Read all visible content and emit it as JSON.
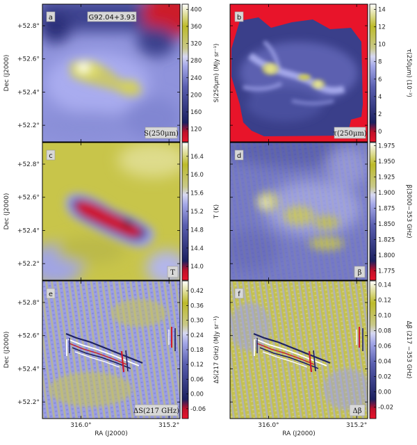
{
  "chart_data": {
    "type": "heatmap",
    "layout": "3x2 grid of map panels",
    "shared_axes": {
      "xlabel": "RA (J2000)",
      "ylabel": "Dec (J2000)",
      "x_ticks": [
        "316.0°",
        "315.2°"
      ],
      "y_ticks": [
        "+52.8°",
        "+52.6°",
        "+52.4°",
        "+52.2°"
      ],
      "x_tick_values": [
        316.0,
        315.2
      ],
      "y_tick_values": [
        52.8,
        52.6,
        52.4,
        52.2
      ],
      "x_range": [
        316.35,
        315.1
      ],
      "y_range": [
        52.1,
        52.93
      ]
    },
    "panels": [
      {
        "id": "a",
        "field_label": "G92.04+3.93",
        "map_label": "S(250μm)",
        "colorbar_label": "S(250μm) (MJy sr⁻¹)",
        "colorbar_ticks": [
          "400",
          "360",
          "320",
          "280",
          "240",
          "200",
          "160",
          "120"
        ],
        "colorbar_tick_values": [
          400,
          360,
          320,
          280,
          240,
          200,
          160,
          120
        ],
        "colorbar_range": [
          90,
          412
        ],
        "colormap": "diverging red-blue-white-yellow"
      },
      {
        "id": "b",
        "map_label": "τ(250μm)",
        "colorbar_label": "τ(250μm) (10⁻³)",
        "colorbar_ticks": [
          "14",
          "12",
          "10",
          "8",
          "6",
          "4",
          "2",
          "0"
        ],
        "colorbar_tick_values": [
          14,
          12,
          10,
          8,
          6,
          4,
          2,
          0
        ],
        "colorbar_range": [
          -1.2,
          14.6
        ],
        "colormap": "diverging red-blue-white-yellow"
      },
      {
        "id": "c",
        "map_label": "T",
        "colorbar_label": "T (K)",
        "colorbar_ticks": [
          "16.4",
          "16.0",
          "15.6",
          "15.2",
          "14.8",
          "14.4",
          "14.0"
        ],
        "colorbar_tick_values": [
          16.4,
          16.0,
          15.6,
          15.2,
          14.8,
          14.4,
          14.0
        ],
        "colorbar_range": [
          13.7,
          16.7
        ],
        "colormap": "diverging red-blue-white-yellow"
      },
      {
        "id": "d",
        "map_label": "β",
        "colorbar_label": "β(3000−353 GHz)",
        "colorbar_ticks": [
          "1.975",
          "1.950",
          "1.925",
          "1.900",
          "1.875",
          "1.850",
          "1.825",
          "1.800",
          "1.775"
        ],
        "colorbar_tick_values": [
          1.975,
          1.95,
          1.925,
          1.9,
          1.875,
          1.85,
          1.825,
          1.8,
          1.775
        ],
        "colorbar_range": [
          1.76,
          1.98
        ],
        "colormap": "diverging red-blue-white-yellow"
      },
      {
        "id": "e",
        "map_label": "ΔS(217 GHz)",
        "colorbar_label": "ΔS(217 GHz) (MJy sr⁻¹)",
        "colorbar_ticks": [
          "0.42",
          "0.36",
          "0.30",
          "0.24",
          "0.18",
          "0.12",
          "0.06",
          "0.00",
          "-0.06"
        ],
        "colorbar_tick_values": [
          0.42,
          0.36,
          0.3,
          0.24,
          0.18,
          0.12,
          0.06,
          0.0,
          -0.06
        ],
        "colorbar_range": [
          -0.1,
          0.46
        ],
        "colormap": "diverging red-blue-white-yellow"
      },
      {
        "id": "f",
        "map_label": "Δβ",
        "colorbar_label": "Δβ (217 −353 GHz)",
        "colorbar_ticks": [
          "0.14",
          "0.12",
          "0.10",
          "0.08",
          "0.06",
          "0.04",
          "0.02",
          "0.00",
          "-0.02"
        ],
        "colorbar_tick_values": [
          0.14,
          0.12,
          0.1,
          0.08,
          0.06,
          0.04,
          0.02,
          0.0,
          -0.02
        ],
        "colorbar_range": [
          -0.035,
          0.145
        ],
        "colormap": "diverging red-blue-white-yellow"
      }
    ]
  }
}
